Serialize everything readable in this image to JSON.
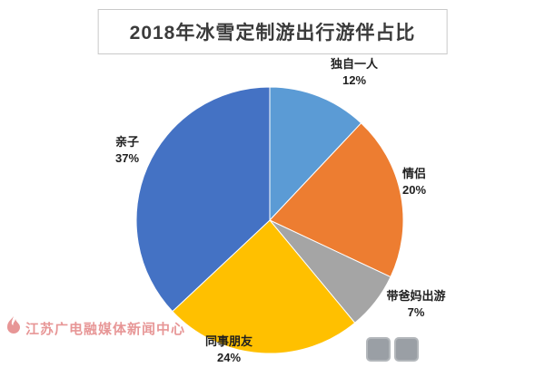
{
  "title": "2018年冰雪定制游出行游伴占比",
  "watermark": {
    "text": "江苏广电融媒体新闻中心"
  },
  "chart_data": {
    "type": "pie",
    "title": "2018年冰雪定制游出行游伴占比",
    "start_angle_deg": 0,
    "direction": "clockwise",
    "legend": "none",
    "labels": "outside",
    "slices": [
      {
        "label": "独自一人",
        "value": 12,
        "percent_label": "12%",
        "color": "#5B9BD5"
      },
      {
        "label": "情侣",
        "value": 20,
        "percent_label": "20%",
        "color": "#ED7D31"
      },
      {
        "label": "带爸妈出游",
        "value": 7,
        "percent_label": "7%",
        "color": "#A5A5A5"
      },
      {
        "label": "同事朋友",
        "value": 24,
        "percent_label": "24%",
        "color": "#FFC000"
      },
      {
        "label": "亲子",
        "value": 37,
        "percent_label": "37%",
        "color": "#4472C4"
      }
    ]
  }
}
